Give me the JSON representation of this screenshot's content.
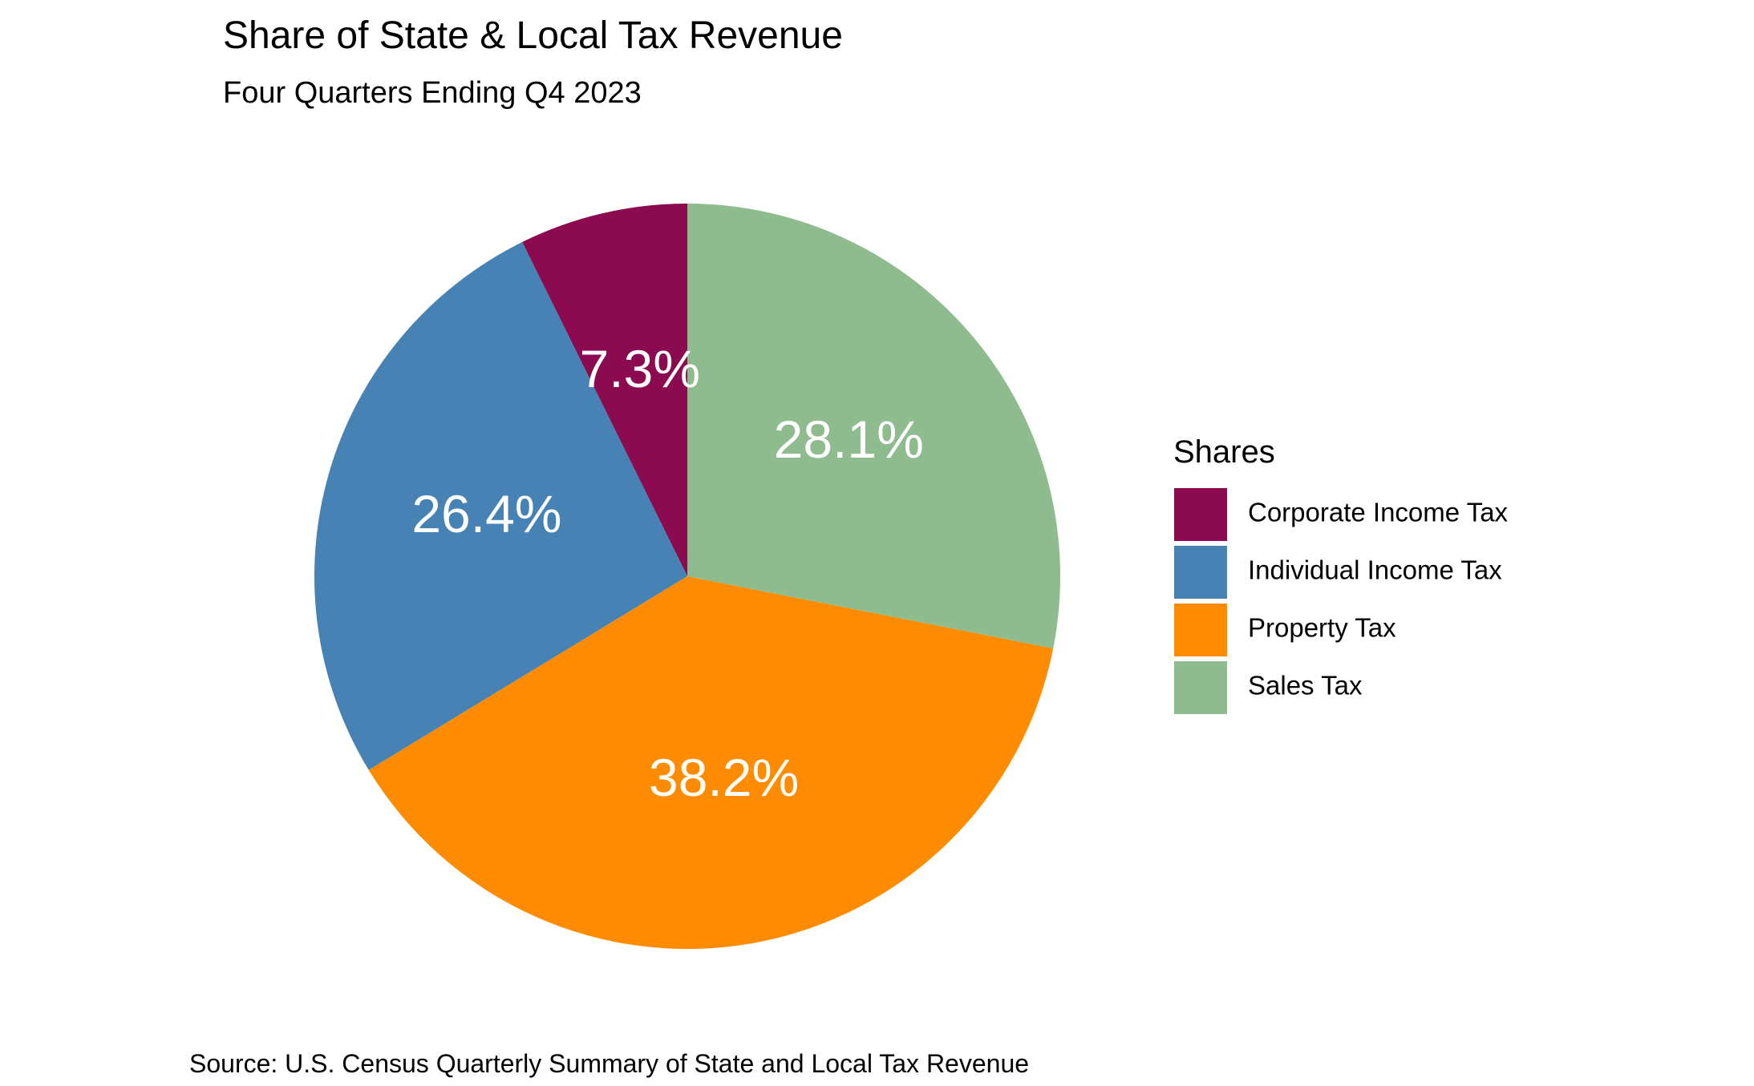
{
  "chart_data": {
    "type": "pie",
    "title": "Share of State & Local Tax Revenue",
    "subtitle": "Four Quarters Ending Q4 2023",
    "caption": "Source: U.S. Census Quarterly Summary of State and Local Tax Revenue",
    "legend_title": "Shares",
    "legend_position": "right",
    "start_angle": "12 o'clock",
    "direction": "counterclockwise",
    "slices": [
      {
        "label": "Corporate Income Tax",
        "value": 7.3,
        "display": "7.3%",
        "color": "#8B0A50"
      },
      {
        "label": "Individual Income Tax",
        "value": 26.4,
        "display": "26.4%",
        "color": "#4682B4"
      },
      {
        "label": "Property Tax",
        "value": 38.2,
        "display": "38.2%",
        "color": "#FF8C00"
      },
      {
        "label": "Sales Tax",
        "value": 28.1,
        "display": "28.1%",
        "color": "#8FBC8F"
      }
    ]
  }
}
